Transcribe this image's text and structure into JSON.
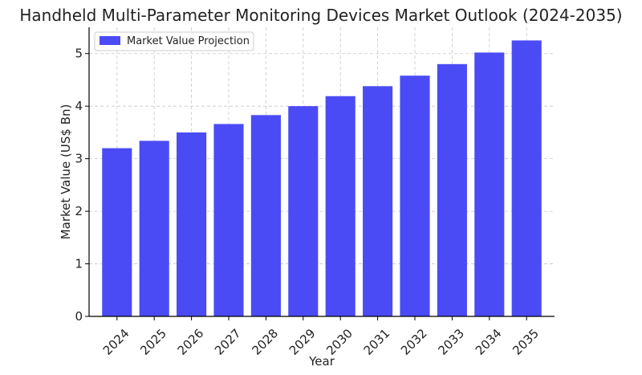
{
  "chart_data": {
    "type": "bar",
    "title": "Handheld Multi-Parameter Monitoring Devices Market Outlook (2024-2035)",
    "xlabel": "Year",
    "ylabel": "Market Value (US$ Bn)",
    "categories": [
      "2024",
      "2025",
      "2026",
      "2027",
      "2028",
      "2029",
      "2030",
      "2031",
      "2032",
      "2033",
      "2034",
      "2035"
    ],
    "series": [
      {
        "name": "Market Value Projection",
        "values": [
          3.2,
          3.34,
          3.5,
          3.66,
          3.83,
          4.0,
          4.19,
          4.38,
          4.58,
          4.8,
          5.02,
          5.25
        ],
        "color": "#4b4bf5"
      }
    ],
    "ylim": [
      0,
      5.5
    ],
    "yticks": [
      0,
      1,
      2,
      3,
      4,
      5
    ],
    "grid": true,
    "legend_position": "top-left",
    "xtick_rotation": 45
  }
}
